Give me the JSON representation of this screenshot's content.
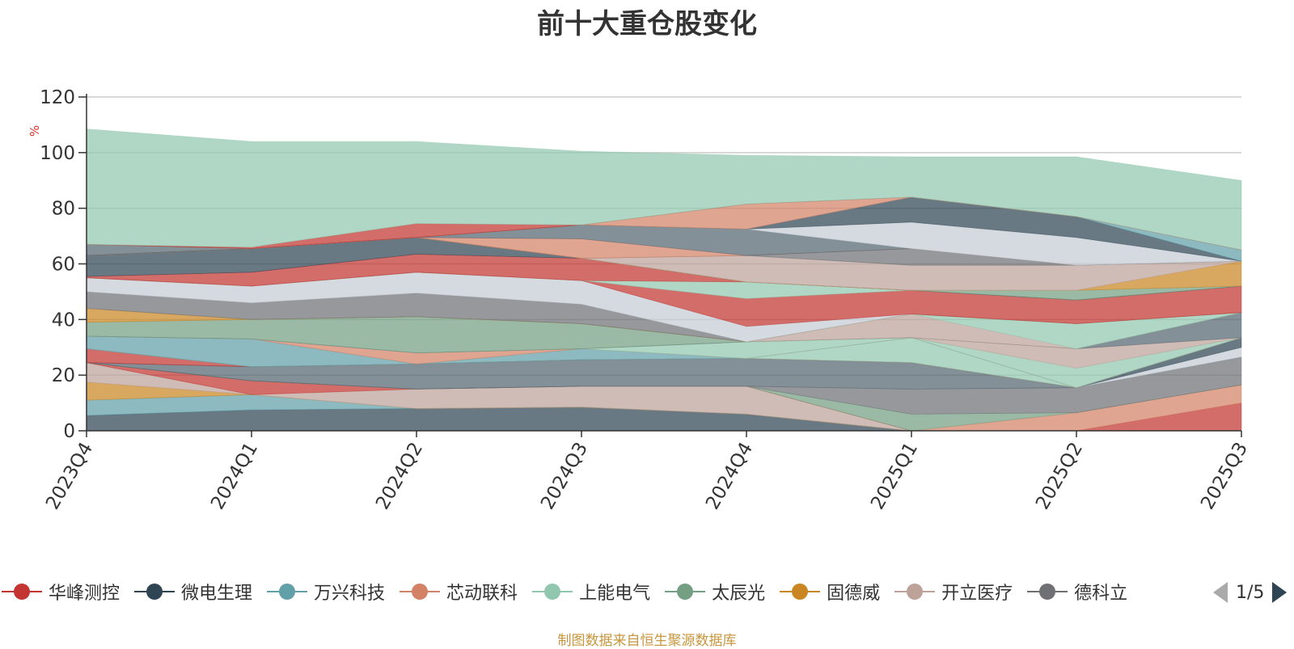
{
  "title": "前十大重仓股变化",
  "source_note": "制图数据来自恒生聚源数据库",
  "pager": {
    "text": "1/5"
  },
  "chart_data": {
    "type": "area",
    "stacked": true,
    "title": "前十大重仓股变化",
    "ylabel": "%",
    "ylim": [
      0,
      120
    ],
    "yticks": [
      0,
      20,
      40,
      60,
      80,
      100,
      120
    ],
    "categories": [
      "2023Q4",
      "2024Q1",
      "2024Q2",
      "2024Q3",
      "2024Q4",
      "2025Q1",
      "2025Q2",
      "2025Q3"
    ],
    "grid": true,
    "legend_position": "bottom",
    "series": [
      {
        "values": [
          5.5,
          7.5,
          8,
          8.5,
          6,
          0,
          0,
          0
        ],
        "color": "#2f4554"
      },
      {
        "values": [
          5.5,
          5.5,
          0,
          0,
          0,
          0,
          0,
          0
        ],
        "color": "#61a0a8"
      },
      {
        "values": [
          6.5,
          0,
          0,
          0,
          0,
          0,
          0,
          0
        ],
        "color": "#ca8622"
      },
      {
        "values": [
          7,
          0,
          7,
          7.5,
          10,
          0,
          0,
          0
        ],
        "color": "#bda29a"
      },
      {
        "values": [
          0,
          5,
          0,
          0,
          0,
          0,
          0,
          10
        ],
        "color": "#c23531"
      },
      {
        "values": [
          0,
          0,
          0,
          0,
          0,
          0,
          6.5,
          6.5
        ],
        "color": "#d48265"
      },
      {
        "values": [
          0,
          0,
          0,
          0,
          0,
          6,
          0,
          0
        ],
        "color": "#749f83"
      },
      {
        "values": [
          0,
          0,
          0,
          0,
          0,
          9,
          9,
          10
        ],
        "color": "#6e7074"
      },
      {
        "values": [
          0,
          5,
          9,
          9.5,
          10,
          9.5,
          0,
          0
        ],
        "color": "#546570"
      },
      {
        "values": [
          0,
          0,
          0,
          0,
          0,
          0,
          0,
          3.5
        ],
        "color": "#c4ccd3"
      },
      {
        "values": [
          0,
          0,
          0,
          0,
          0,
          0,
          0,
          3.5
        ],
        "color": "#2f4554"
      },
      {
        "values": [
          5,
          0,
          0,
          0,
          0,
          0,
          0,
          0
        ],
        "color": "#c23531"
      },
      {
        "values": [
          0,
          0,
          0,
          0,
          0,
          9,
          0,
          0
        ],
        "color": "#91c7ae"
      },
      {
        "values": [
          4.5,
          10,
          0,
          4,
          0,
          0,
          0,
          0
        ],
        "color": "#61a0a8"
      },
      {
        "values": [
          0,
          0,
          4,
          0,
          0,
          0,
          0,
          0
        ],
        "color": "#d48265"
      },
      {
        "values": [
          0,
          0,
          0,
          0,
          6,
          0,
          7,
          0
        ],
        "color": "#91c7ae"
      },
      {
        "values": [
          0,
          0,
          0,
          0,
          0,
          0,
          7,
          0
        ],
        "color": "#bda29a"
      },
      {
        "values": [
          0,
          0,
          0,
          0,
          0,
          0,
          0,
          9
        ],
        "color": "#546570"
      },
      {
        "values": [
          5,
          7,
          13,
          9,
          0,
          0,
          0,
          0
        ],
        "color": "#749f83"
      },
      {
        "values": [
          0,
          0,
          0,
          0,
          0,
          8.5,
          0,
          0
        ],
        "color": "#bda29a"
      },
      {
        "values": [
          0,
          0,
          0,
          0,
          0,
          0,
          9,
          0
        ],
        "color": "#91c7ae"
      },
      {
        "values": [
          5,
          0,
          0,
          0,
          0,
          0,
          0,
          0
        ],
        "color": "#ca8622"
      },
      {
        "values": [
          6,
          6,
          8.5,
          7,
          0,
          0,
          0,
          0
        ],
        "color": "#6e7074"
      },
      {
        "values": [
          5,
          6,
          7.5,
          8.5,
          5.5,
          0,
          0,
          0
        ],
        "color": "#c4ccd3"
      },
      {
        "values": [
          0,
          0,
          0,
          0,
          10,
          8.5,
          8.5,
          9.5
        ],
        "color": "#c23531"
      },
      {
        "values": [
          0,
          0,
          0,
          0,
          6,
          0,
          0,
          0
        ],
        "color": "#91c7ae"
      },
      {
        "values": [
          0.5,
          5,
          6.5,
          8,
          0,
          0,
          0,
          0
        ],
        "color": "#c23531"
      },
      {
        "values": [
          7.5,
          8.5,
          6,
          0,
          0,
          0,
          0,
          0
        ],
        "color": "#2f4554"
      },
      {
        "values": [
          0,
          0,
          0,
          0,
          0,
          0,
          3.5,
          0
        ],
        "color": "#749f83"
      },
      {
        "values": [
          0,
          0,
          0,
          0,
          0,
          0,
          0,
          9
        ],
        "color": "#ca8622"
      },
      {
        "values": [
          0,
          0,
          0,
          0,
          9.5,
          9,
          9,
          0
        ],
        "color": "#bda29a"
      },
      {
        "values": [
          0,
          0,
          0,
          0,
          0,
          6,
          0,
          0
        ],
        "color": "#6e7074"
      },
      {
        "values": [
          0,
          0,
          0,
          7,
          0,
          0,
          0,
          0
        ],
        "color": "#d48265"
      },
      {
        "values": [
          4,
          0,
          0,
          5,
          9.5,
          0,
          0,
          0
        ],
        "color": "#546570"
      },
      {
        "values": [
          0,
          0,
          0,
          0,
          0,
          9.5,
          10,
          0
        ],
        "color": "#c4ccd3"
      },
      {
        "values": [
          0,
          0,
          0,
          0,
          0,
          9,
          7.5,
          0
        ],
        "color": "#2f4554"
      },
      {
        "values": [
          0,
          0,
          0,
          0,
          0,
          0,
          0,
          4
        ],
        "color": "#61a0a8"
      },
      {
        "values": [
          0,
          0,
          0,
          0,
          9,
          0,
          0,
          0
        ],
        "color": "#d48265"
      },
      {
        "values": [
          0,
          0.5,
          5,
          0,
          0,
          0,
          0,
          0
        ],
        "color": "#c23531"
      },
      {
        "values": [
          41.5,
          38,
          29.5,
          26.5,
          17.5,
          14.5,
          21.5,
          25
        ],
        "color": "#91c7ae"
      }
    ]
  },
  "legend": {
    "items": [
      {
        "label": "华峰测控",
        "color": "#c23531"
      },
      {
        "label": "微电生理",
        "color": "#2f4554"
      },
      {
        "label": "万兴科技",
        "color": "#61a0a8"
      },
      {
        "label": "芯动联科",
        "color": "#d48265"
      },
      {
        "label": "上能电气",
        "color": "#91c7ae"
      },
      {
        "label": "太辰光",
        "color": "#749f83"
      },
      {
        "label": "固德威",
        "color": "#ca8622"
      },
      {
        "label": "开立医疗",
        "color": "#bda29a"
      },
      {
        "label": "德科立",
        "color": "#6e7074"
      }
    ]
  }
}
